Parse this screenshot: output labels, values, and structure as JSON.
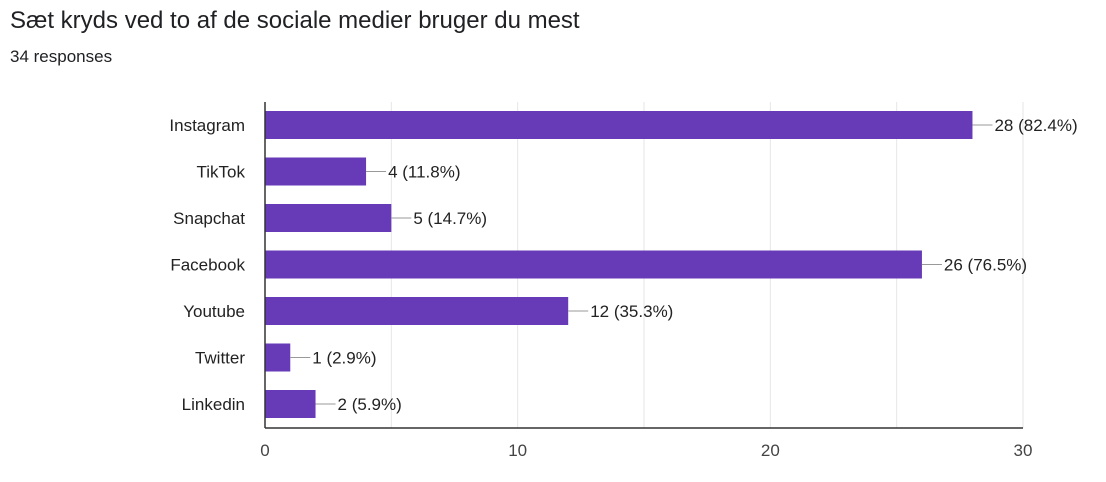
{
  "question": {
    "title": "Sæt kryds ved to af de sociale medier bruger du mest",
    "responses": "34 responses"
  },
  "colors": {
    "bar": "#673ab7",
    "grid": "#e6e6e6",
    "axis": "#333333",
    "leader": "#999999",
    "text": "#222222"
  },
  "chart_data": {
    "type": "bar",
    "orientation": "horizontal",
    "categories": [
      "Instagram",
      "TikTok",
      "Snapchat",
      "Facebook",
      "Youtube",
      "Twitter",
      "Linkedin"
    ],
    "values": [
      28,
      4,
      5,
      26,
      12,
      1,
      2
    ],
    "value_labels": [
      "28 (82.4%)",
      "4 (11.8%)",
      "5 (14.7%)",
      "26 (76.5%)",
      "12 (35.3%)",
      "1 (2.9%)",
      "2 (5.9%)"
    ],
    "xlim": [
      0,
      30
    ],
    "xticks": [
      0,
      10,
      20,
      30
    ],
    "xtick_labels": [
      "0",
      "10",
      "20",
      "30"
    ],
    "grid": true
  }
}
